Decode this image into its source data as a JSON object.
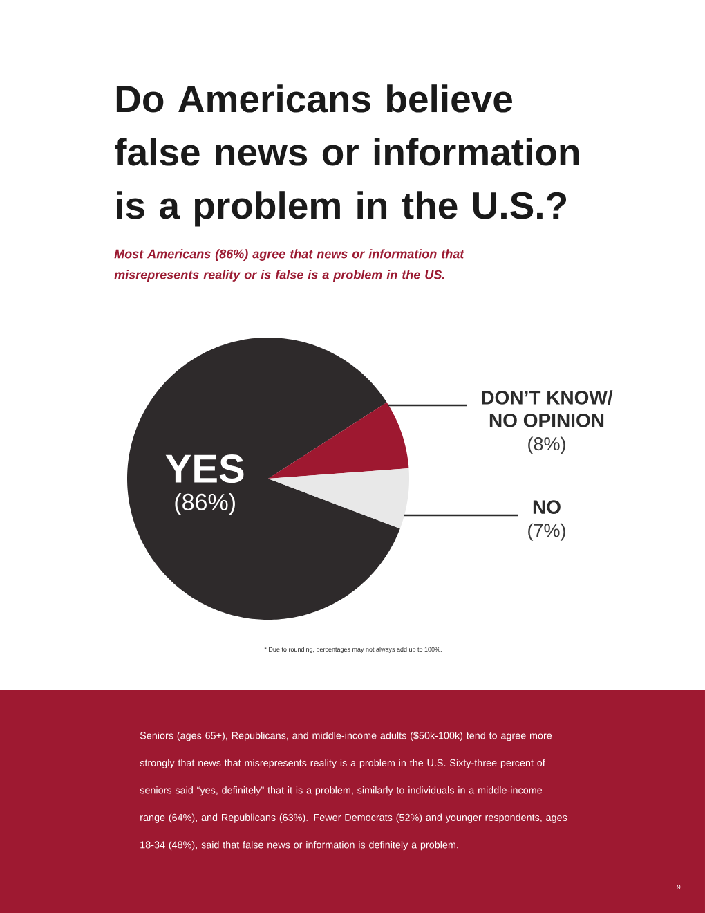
{
  "chart_data": {
    "type": "pie",
    "title": "Do Americans believe false news or information is a problem in the U.S.?",
    "subtitle": "Most Americans (86%) agree that news or information that misrepresents reality or is false is a problem in the US.",
    "categories": [
      "YES",
      "DON’T KNOW/ NO OPINION",
      "NO"
    ],
    "values": [
      86,
      8,
      7
    ],
    "colors": [
      "#2e2a2b",
      "#9e1830",
      "#e8e8e8"
    ],
    "value_labels": [
      "(86%)",
      "(8%)",
      "(7%)"
    ],
    "annotations": [
      "* Due to rounding, percentages may not always add up to 100%.",
      "Seniors (ages 65+), Republicans, and middle-income adults ($50k-100k) tend to agree more strongly that news that misrepresents reality is a problem in the U.S. Sixty-three percent of seniors said “yes, definitely” that it is a problem, similarly to individuals in a middle-income range (64%), and Republicans (63%). Fewer Democrats (52%) and younger respondents, ages 18-34 (48%), said that false news or information is definitely a problem.",
      "9"
    ]
  }
}
